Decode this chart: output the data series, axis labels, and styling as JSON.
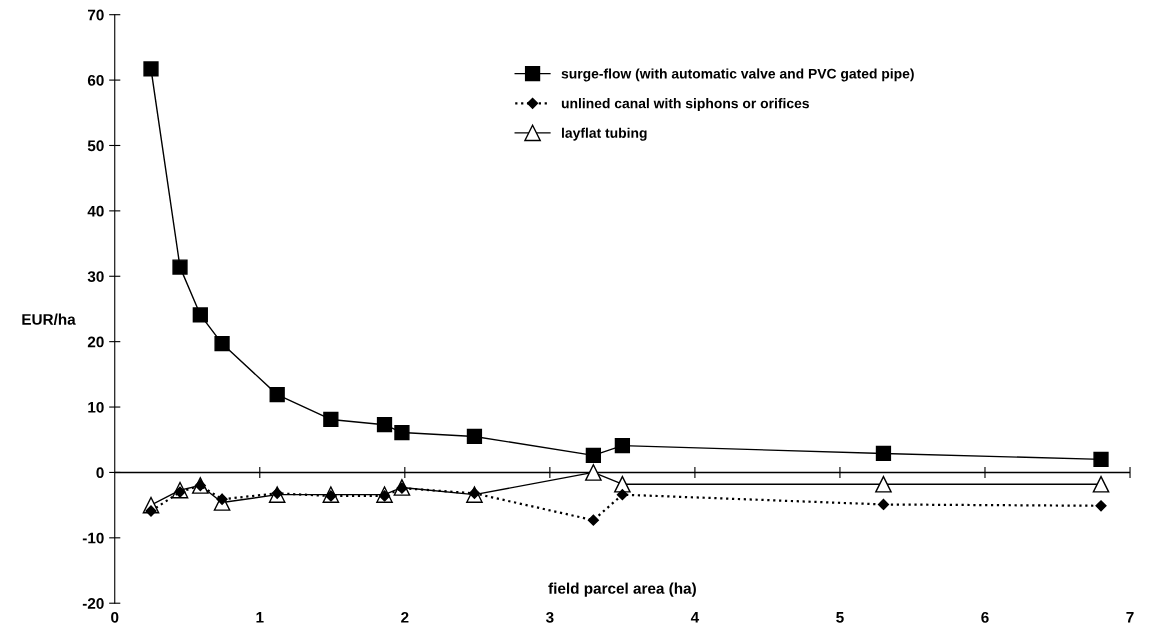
{
  "chart_data": {
    "type": "line",
    "xlabel": "field parcel area (ha)",
    "ylabel": "EUR/ha",
    "x": [
      0.25,
      0.45,
      0.59,
      0.74,
      1.12,
      1.49,
      1.86,
      1.98,
      2.48,
      3.3,
      3.5,
      5.3,
      6.8
    ],
    "series": [
      {
        "name": "surge-flow (with automatic valve and PVC gated pipe)",
        "color": "#000000",
        "marker": "square",
        "line_style": "solid",
        "values": [
          61.7,
          31.4,
          24.1,
          19.7,
          11.9,
          8.1,
          7.3,
          6.1,
          5.5,
          2.6,
          4.1,
          2.9,
          2.0
        ]
      },
      {
        "name": "unlined canal with siphons or orifices",
        "color": "#000000",
        "marker": "diamond",
        "line_style": "dotted",
        "values": [
          -5.9,
          -3.0,
          -2.0,
          -4.1,
          -3.2,
          -3.6,
          -3.6,
          -2.4,
          -3.2,
          -7.3,
          -3.4,
          -4.9,
          -5.1
        ]
      },
      {
        "name": "layflat tubing",
        "color": "#000000",
        "marker": "triangle",
        "line_style": "solid",
        "values": [
          -5.0,
          -2.7,
          -2.0,
          -4.6,
          -3.4,
          -3.4,
          -3.4,
          -2.3,
          -3.4,
          0.0,
          -1.8,
          -1.8,
          -1.8
        ]
      }
    ],
    "xlim": [
      0,
      7
    ],
    "xticks": [
      0,
      1,
      2,
      3,
      4,
      5,
      6,
      7
    ],
    "ylim": [
      -20,
      70
    ],
    "yticks": [
      -20,
      -10,
      0,
      10,
      20,
      30,
      40,
      50,
      60,
      70
    ],
    "ref_lines": [
      {
        "axis": "y",
        "value": 0,
        "color": "#000000",
        "line_style": "solid"
      }
    ],
    "grid": false,
    "legend": "top right"
  }
}
